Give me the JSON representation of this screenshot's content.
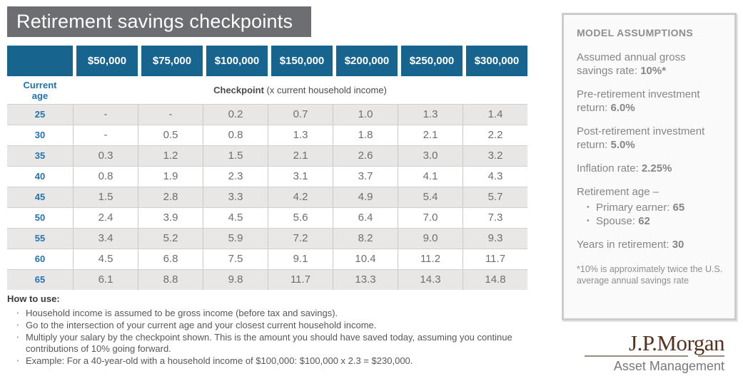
{
  "title": "Retirement savings checkpoints",
  "colors": {
    "header_blue": "#17648f",
    "accent_blue": "#2173b2",
    "title_bar_gray": "#6d6e71",
    "row_stripe_gray": "#e8e7e5",
    "brand_brown": "#553220"
  },
  "table": {
    "income_headers": [
      "$50,000",
      "$75,000",
      "$100,000",
      "$150,000",
      "$200,000",
      "$250,000",
      "$300,000"
    ],
    "age_label_line1": "Current",
    "age_label_line2": "age",
    "checkpoint_label_bold": "Checkpoint",
    "checkpoint_label_rest": " (x current household income)",
    "rows": [
      {
        "age": "25",
        "values": [
          "-",
          "-",
          "0.2",
          "0.7",
          "1.0",
          "1.3",
          "1.4"
        ]
      },
      {
        "age": "30",
        "values": [
          "-",
          "0.5",
          "0.8",
          "1.3",
          "1.8",
          "2.1",
          "2.2"
        ]
      },
      {
        "age": "35",
        "values": [
          "0.3",
          "1.2",
          "1.5",
          "2.1",
          "2.6",
          "3.0",
          "3.2"
        ]
      },
      {
        "age": "40",
        "values": [
          "0.8",
          "1.9",
          "2.3",
          "3.1",
          "3.7",
          "4.1",
          "4.3"
        ]
      },
      {
        "age": "45",
        "values": [
          "1.5",
          "2.8",
          "3.3",
          "4.2",
          "4.9",
          "5.4",
          "5.7"
        ]
      },
      {
        "age": "50",
        "values": [
          "2.4",
          "3.9",
          "4.5",
          "5.6",
          "6.4",
          "7.0",
          "7.3"
        ]
      },
      {
        "age": "55",
        "values": [
          "3.4",
          "5.2",
          "5.9",
          "7.2",
          "8.2",
          "9.0",
          "9.3"
        ]
      },
      {
        "age": "60",
        "values": [
          "4.5",
          "6.8",
          "7.5",
          "9.1",
          "10.4",
          "11.2",
          "11.7"
        ]
      },
      {
        "age": "65",
        "values": [
          "6.1",
          "8.8",
          "9.8",
          "11.7",
          "13.3",
          "14.3",
          "14.8"
        ]
      }
    ]
  },
  "how_to_use": {
    "heading": "How to use:",
    "bullets": [
      "Household income is assumed to be gross income (before tax and savings).",
      "Go to the intersection of your current age and your closest current household income.",
      "Multiply your salary by the checkpoint shown. This is the amount you should have saved today, assuming you continue contributions of 10% going forward.",
      "Example: For a 40-year-old with a household income of $100,000: $100,000 x 2.3 = $230,000."
    ]
  },
  "assumptions": {
    "heading": "MODEL ASSUMPTIONS",
    "items": [
      {
        "segments": [
          {
            "text": "Assumed annual gross savings rate: "
          },
          {
            "text": "10%*",
            "bold": true
          }
        ]
      },
      {
        "segments": [
          {
            "text": "Pre-retirement investment return: "
          },
          {
            "text": "6.0%",
            "bold": true
          }
        ]
      },
      {
        "segments": [
          {
            "text": "Post-retirement investment return: "
          },
          {
            "text": "5.0%",
            "bold": true
          }
        ]
      },
      {
        "segments": [
          {
            "text": "Inflation rate: "
          },
          {
            "text": "2.25%",
            "bold": true
          }
        ]
      },
      {
        "segments": [
          {
            "text": "Retirement age –"
          }
        ],
        "sub_items": [
          {
            "segments": [
              {
                "text": "Primary earner: "
              },
              {
                "text": "65",
                "bold": true
              }
            ]
          },
          {
            "segments": [
              {
                "text": "Spouse: "
              },
              {
                "text": "62",
                "bold": true
              }
            ]
          }
        ]
      },
      {
        "segments": [
          {
            "text": "Years in retirement: "
          },
          {
            "text": "30",
            "bold": true
          }
        ]
      }
    ],
    "footnote": "*10% is approximately twice the U.S. average annual savings rate"
  },
  "logo": {
    "name": "J.P.Morgan",
    "subtitle": "Asset Management"
  }
}
